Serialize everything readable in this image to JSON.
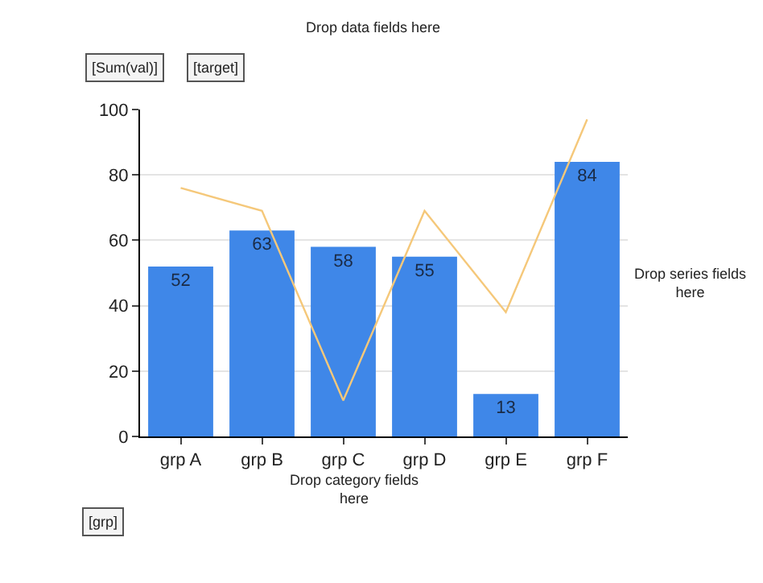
{
  "chart_data": {
    "type": "bar",
    "categories": [
      "grp A",
      "grp B",
      "grp C",
      "grp D",
      "grp E",
      "grp F"
    ],
    "series": [
      {
        "color": "#3f87e8",
        "values": [
          52,
          63,
          58,
          55,
          13,
          84
        ],
        "value_labels": [
          "52",
          "63",
          "58",
          "55",
          "13",
          "84"
        ]
      },
      {
        "type": "line",
        "color": "#f5c87a",
        "values": [
          76,
          69,
          11,
          69,
          38,
          97
        ]
      }
    ],
    "ylim": [
      0,
      100
    ],
    "yticks": [
      0,
      20,
      40,
      60,
      80,
      100
    ],
    "grid": "y",
    "marker": "none",
    "line_style": "solid",
    "annotations": [
      "Drop data fields here",
      "[Sum(val)]",
      "[target]",
      "Drop category fields here",
      "[grp]",
      "Drop series fields here"
    ]
  }
}
